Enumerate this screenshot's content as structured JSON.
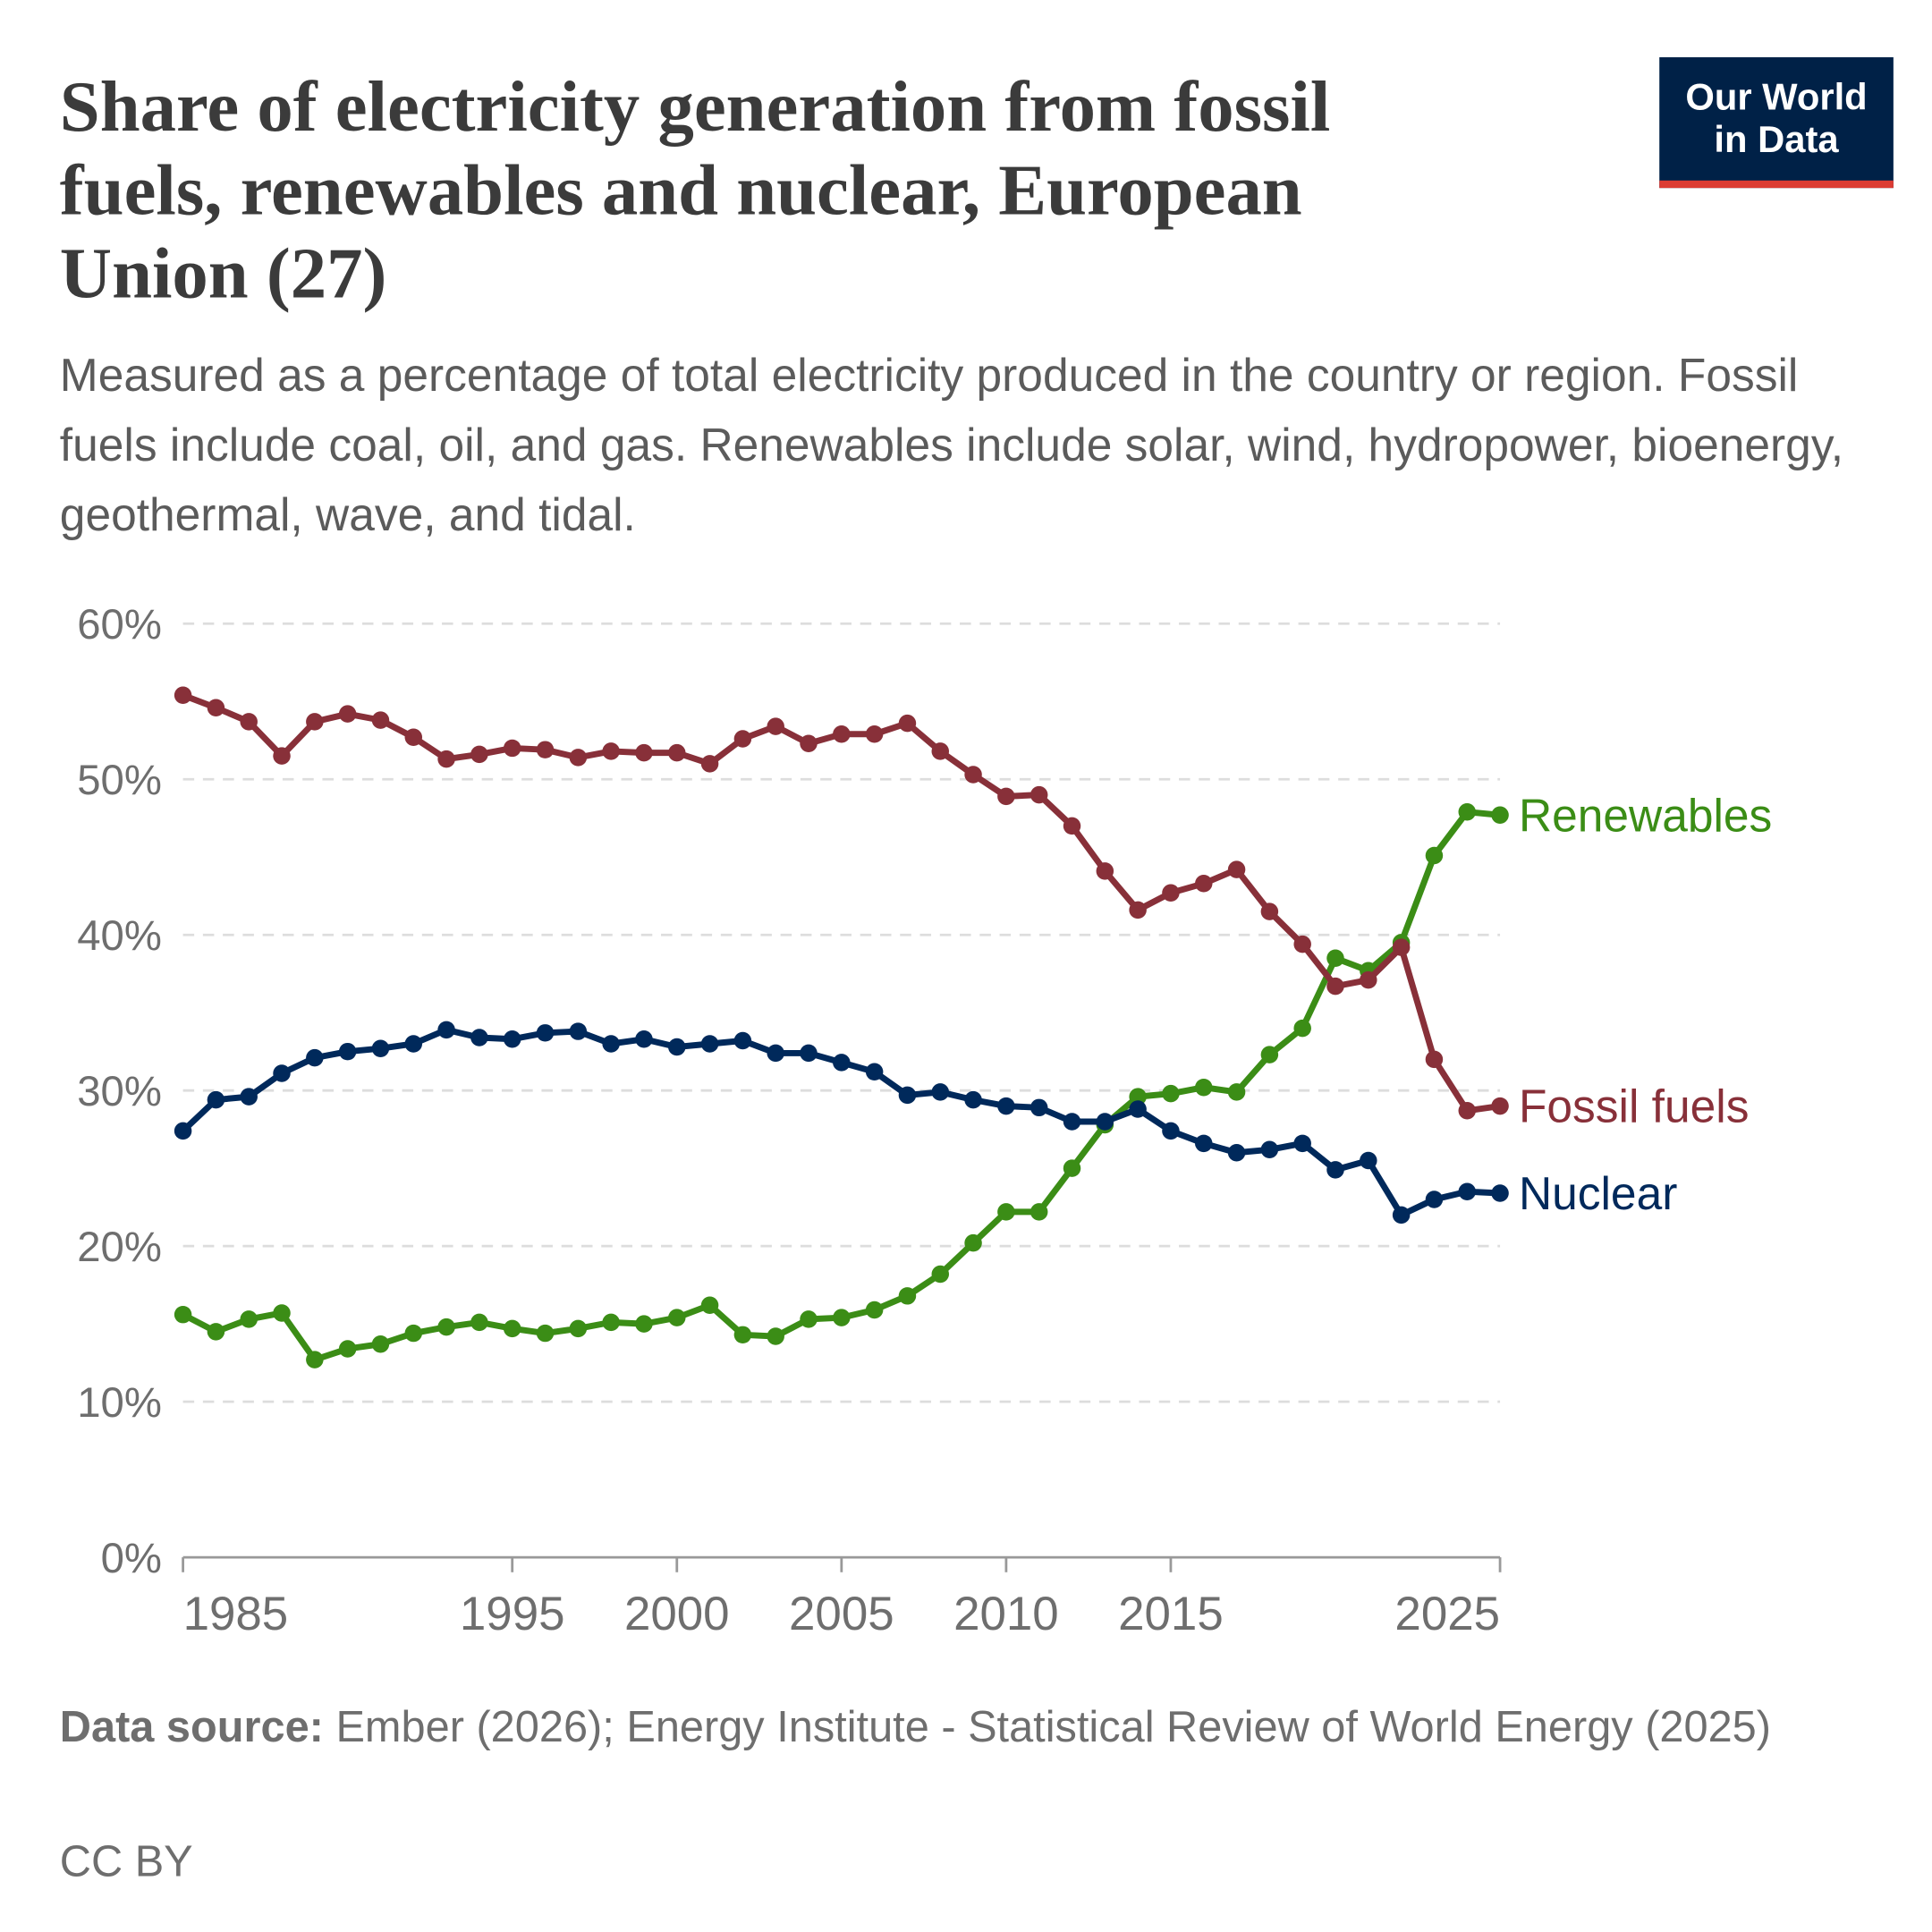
{
  "chart_data": {
    "type": "line",
    "title": "Share of electricity generation from fossil fuels, renewables and nuclear, European Union (27)",
    "subtitle": "Measured as a percentage of total electricity produced in the country or region. Fossil fuels include coal, oil, and gas. Renewables include solar, wind, hydropower, bioenergy, geothermal, wave, and tidal.",
    "logo": "Our World in Data",
    "source_label": "Data source:",
    "source": "Ember (2026); Energy Institute - Statistical Review of World Energy (2025)",
    "license": "CC BY",
    "x": [
      1985,
      1986,
      1987,
      1988,
      1989,
      1990,
      1991,
      1992,
      1993,
      1994,
      1995,
      1996,
      1997,
      1998,
      1999,
      2000,
      2001,
      2002,
      2003,
      2004,
      2005,
      2006,
      2007,
      2008,
      2009,
      2010,
      2011,
      2012,
      2013,
      2014,
      2015,
      2016,
      2017,
      2018,
      2019,
      2020,
      2021,
      2022,
      2023,
      2024,
      2025
    ],
    "xlim": [
      1985,
      2025
    ],
    "xticks": [
      1985,
      1995,
      2000,
      2005,
      2010,
      2015,
      2025
    ],
    "ylim": [
      0,
      60
    ],
    "yticks": [
      {
        "value": 0,
        "label": "0%"
      },
      {
        "value": 10,
        "label": "10%"
      },
      {
        "value": 20,
        "label": "20%"
      },
      {
        "value": 30,
        "label": "30%"
      },
      {
        "value": 40,
        "label": "40%"
      },
      {
        "value": 50,
        "label": "50%"
      },
      {
        "value": 60,
        "label": "60%"
      }
    ],
    "grid": true,
    "series": [
      {
        "name": "Renewables",
        "color": "#3b8d16",
        "values": [
          15.6,
          14.5,
          15.3,
          15.7,
          12.7,
          13.4,
          13.7,
          14.4,
          14.8,
          15.1,
          14.7,
          14.4,
          14.7,
          15.1,
          15.0,
          15.4,
          16.2,
          14.3,
          14.2,
          15.3,
          15.4,
          15.9,
          16.8,
          18.2,
          20.2,
          22.2,
          22.2,
          25.0,
          27.8,
          29.6,
          29.8,
          30.2,
          29.9,
          32.3,
          34.0,
          38.5,
          37.7,
          39.5,
          45.1,
          47.9,
          47.7
        ]
      },
      {
        "name": "Fossil fuels",
        "color": "#883039",
        "values": [
          55.4,
          54.6,
          53.7,
          51.5,
          53.7,
          54.2,
          53.8,
          52.7,
          51.3,
          51.6,
          52.0,
          51.9,
          51.4,
          51.8,
          51.7,
          51.7,
          51.0,
          52.6,
          53.4,
          52.3,
          52.9,
          52.9,
          53.6,
          51.8,
          50.3,
          48.9,
          49.0,
          47.0,
          44.1,
          41.6,
          42.7,
          43.3,
          44.2,
          41.5,
          39.4,
          36.7,
          37.1,
          39.2,
          32.0,
          28.7,
          29.0
        ]
      },
      {
        "name": "Nuclear",
        "color": "#00295b",
        "values": [
          27.4,
          29.4,
          29.6,
          31.1,
          32.1,
          32.5,
          32.7,
          33.0,
          33.9,
          33.4,
          33.3,
          33.7,
          33.8,
          33.0,
          33.3,
          32.8,
          33.0,
          33.2,
          32.4,
          32.4,
          31.8,
          31.2,
          29.7,
          29.9,
          29.4,
          29.0,
          28.9,
          28.0,
          28.0,
          28.8,
          27.4,
          26.6,
          26.0,
          26.2,
          26.6,
          24.9,
          25.5,
          22.0,
          23.0,
          23.5,
          23.4
        ]
      }
    ]
  }
}
